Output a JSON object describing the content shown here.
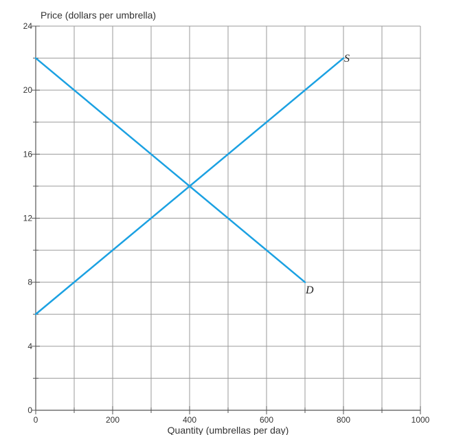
{
  "chart_data": {
    "type": "line",
    "ylabel": "Price (dollars per umbrella)",
    "xlabel": "Quantity (umbrellas per day)",
    "xlim": [
      0,
      1000
    ],
    "ylim": [
      0,
      24
    ],
    "grid": true,
    "x_minor_step": 100,
    "y_minor_step": 2,
    "x_ticks": [
      0,
      200,
      400,
      600,
      800,
      1000
    ],
    "y_ticks": [
      0,
      4,
      8,
      12,
      16,
      20,
      24
    ],
    "x_tick_labels": [
      "0",
      "200",
      "400",
      "600",
      "800",
      "1000"
    ],
    "y_tick_labels": [
      "0",
      "4",
      "8",
      "12",
      "16",
      "20",
      "24"
    ],
    "series": [
      {
        "name": "S",
        "color": "#1BA1E2",
        "points": [
          [
            0,
            6
          ],
          [
            800,
            22
          ]
        ]
      },
      {
        "name": "D",
        "color": "#1BA1E2",
        "points": [
          [
            0,
            22
          ],
          [
            700,
            8
          ]
        ]
      }
    ],
    "colors": {
      "grid": "#9a9a9a",
      "axis": "#555555",
      "line": "#1BA1E2"
    }
  }
}
